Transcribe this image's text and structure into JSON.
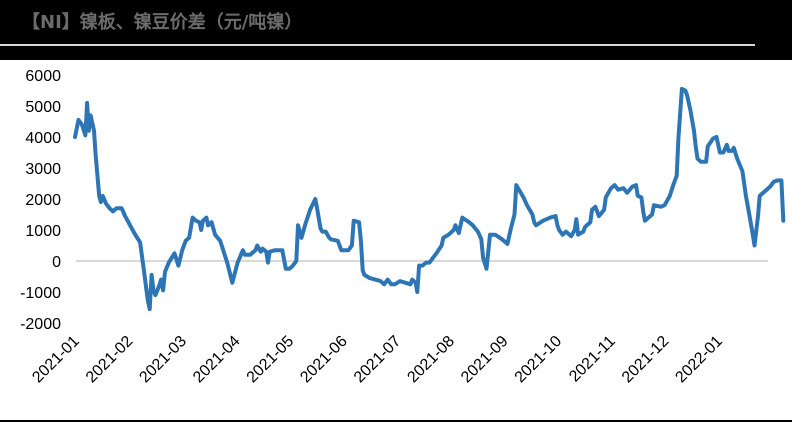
{
  "header": {
    "title": "【NI】镍板、镍豆价差（元/吨镍）"
  },
  "chart_data": {
    "type": "line",
    "title": "【NI】镍板、镍豆价差（元/吨镍）",
    "xlabel": "",
    "ylabel": "",
    "ylim": [
      -2000,
      6000
    ],
    "yticks": [
      6000,
      5000,
      4000,
      3000,
      2000,
      1000,
      0,
      -1000,
      -2000
    ],
    "ytick_labels": [
      "6000",
      "5000",
      "4000",
      "3000",
      "2000",
      "1000",
      "0",
      "-1000",
      "-2000"
    ],
    "xtick_labels": [
      "2021-01",
      "2021-02",
      "2021-03",
      "2021-04",
      "2021-05",
      "2021-06",
      "2021-07",
      "2021-08",
      "2021-09",
      "2021-10",
      "2021-11",
      "2021-12",
      "2022-01"
    ],
    "grid": "zero line only",
    "legend": "none",
    "colors": {
      "line": "#2E75B6",
      "zero_line": "#D9D9D9",
      "header_bg": "#000000",
      "title_text": "#6B6B6B"
    },
    "series": [
      {
        "name": "镍板、镍豆价差",
        "points": [
          [
            "2021-01-01",
            4000
          ],
          [
            "2021-01-03",
            4550
          ],
          [
            "2021-01-05",
            4400
          ],
          [
            "2021-01-07",
            4050
          ],
          [
            "2021-01-08",
            5100
          ],
          [
            "2021-01-09",
            4200
          ],
          [
            "2021-01-10",
            4700
          ],
          [
            "2021-01-12",
            4200
          ],
          [
            "2021-01-13",
            3400
          ],
          [
            "2021-01-15",
            2100
          ],
          [
            "2021-01-16",
            1900
          ],
          [
            "2021-01-17",
            2100
          ],
          [
            "2021-01-19",
            1850
          ],
          [
            "2021-01-21",
            1700
          ],
          [
            "2021-01-23",
            1600
          ],
          [
            "2021-01-25",
            1700
          ],
          [
            "2021-01-28",
            1700
          ],
          [
            "2021-01-30",
            1450
          ],
          [
            "2021-02-04",
            900
          ],
          [
            "2021-02-07",
            600
          ],
          [
            "2021-02-09",
            -300
          ],
          [
            "2021-02-11",
            -1250
          ],
          [
            "2021-02-12",
            -1550
          ],
          [
            "2021-02-13",
            -450
          ],
          [
            "2021-02-14",
            -950
          ],
          [
            "2021-02-15",
            -1100
          ],
          [
            "2021-02-17",
            -800
          ],
          [
            "2021-02-18",
            -600
          ],
          [
            "2021-02-19",
            -950
          ],
          [
            "2021-02-20",
            -350
          ],
          [
            "2021-02-22",
            -50
          ],
          [
            "2021-02-25",
            250
          ],
          [
            "2021-02-27",
            -150
          ],
          [
            "2021-03-01",
            350
          ],
          [
            "2021-03-03",
            650
          ],
          [
            "2021-03-05",
            750
          ],
          [
            "2021-03-07",
            1400
          ],
          [
            "2021-03-09",
            1300
          ],
          [
            "2021-03-11",
            1250
          ],
          [
            "2021-03-12",
            1000
          ],
          [
            "2021-03-13",
            1300
          ],
          [
            "2021-03-15",
            1400
          ],
          [
            "2021-03-16",
            1150
          ],
          [
            "2021-03-18",
            1250
          ],
          [
            "2021-03-19",
            1050
          ],
          [
            "2021-03-20",
            850
          ],
          [
            "2021-03-23",
            650
          ],
          [
            "2021-03-27",
            -50
          ],
          [
            "2021-03-30",
            -700
          ],
          [
            "2021-04-02",
            -50
          ],
          [
            "2021-04-05",
            350
          ],
          [
            "2021-04-06",
            200
          ],
          [
            "2021-04-09",
            200
          ],
          [
            "2021-04-12",
            350
          ],
          [
            "2021-04-13",
            500
          ],
          [
            "2021-04-15",
            300
          ],
          [
            "2021-04-16",
            400
          ],
          [
            "2021-04-18",
            300
          ],
          [
            "2021-04-19",
            -50
          ],
          [
            "2021-04-20",
            300
          ],
          [
            "2021-04-23",
            350
          ],
          [
            "2021-04-27",
            350
          ],
          [
            "2021-04-29",
            -250
          ],
          [
            "2021-05-01",
            -250
          ],
          [
            "2021-05-03",
            -150
          ],
          [
            "2021-05-05",
            0
          ],
          [
            "2021-05-06",
            1150
          ],
          [
            "2021-05-08",
            750
          ],
          [
            "2021-05-10",
            1150
          ],
          [
            "2021-05-13",
            1650
          ],
          [
            "2021-05-16",
            2000
          ],
          [
            "2021-05-17",
            1700
          ],
          [
            "2021-05-19",
            1050
          ],
          [
            "2021-05-20",
            950
          ],
          [
            "2021-05-22",
            950
          ],
          [
            "2021-05-24",
            750
          ],
          [
            "2021-05-25",
            700
          ],
          [
            "2021-05-29",
            650
          ],
          [
            "2021-05-31",
            350
          ],
          [
            "2021-06-04",
            350
          ],
          [
            "2021-06-06",
            500
          ],
          [
            "2021-06-07",
            1300
          ],
          [
            "2021-06-10",
            1250
          ],
          [
            "2021-06-11",
            650
          ],
          [
            "2021-06-12",
            -300
          ],
          [
            "2021-06-13",
            -450
          ],
          [
            "2021-06-16",
            -550
          ],
          [
            "2021-06-19",
            -600
          ],
          [
            "2021-06-22",
            -650
          ],
          [
            "2021-06-24",
            -750
          ],
          [
            "2021-06-26",
            -600
          ],
          [
            "2021-06-28",
            -750
          ],
          [
            "2021-06-30",
            -750
          ],
          [
            "2021-07-03",
            -650
          ],
          [
            "2021-07-06",
            -700
          ],
          [
            "2021-07-09",
            -750
          ],
          [
            "2021-07-10",
            -600
          ],
          [
            "2021-07-12",
            -700
          ],
          [
            "2021-07-13",
            -1000
          ],
          [
            "2021-07-14",
            -150
          ],
          [
            "2021-07-16",
            -150
          ],
          [
            "2021-07-18",
            -50
          ],
          [
            "2021-07-20",
            -50
          ],
          [
            "2021-07-22",
            100
          ],
          [
            "2021-07-24",
            250
          ],
          [
            "2021-07-27",
            500
          ],
          [
            "2021-07-28",
            750
          ],
          [
            "2021-07-31",
            850
          ],
          [
            "2021-08-03",
            1000
          ],
          [
            "2021-08-04",
            1150
          ],
          [
            "2021-08-06",
            900
          ],
          [
            "2021-08-08",
            1400
          ],
          [
            "2021-08-12",
            1250
          ],
          [
            "2021-08-14",
            1150
          ],
          [
            "2021-08-17",
            950
          ],
          [
            "2021-08-19",
            700
          ],
          [
            "2021-08-20",
            100
          ],
          [
            "2021-08-22",
            -250
          ],
          [
            "2021-08-24",
            850
          ],
          [
            "2021-08-27",
            850
          ],
          [
            "2021-08-31",
            700
          ],
          [
            "2021-09-03",
            550
          ],
          [
            "2021-09-05",
            1050
          ],
          [
            "2021-09-07",
            1500
          ],
          [
            "2021-09-08",
            2450
          ],
          [
            "2021-09-09",
            2350
          ],
          [
            "2021-09-12",
            2050
          ],
          [
            "2021-09-14",
            1800
          ],
          [
            "2021-09-17",
            1500
          ],
          [
            "2021-09-18",
            1250
          ],
          [
            "2021-09-19",
            1150
          ],
          [
            "2021-09-23",
            1300
          ],
          [
            "2021-09-27",
            1400
          ],
          [
            "2021-09-30",
            1450
          ],
          [
            "2021-10-01",
            1150
          ],
          [
            "2021-10-02",
            1000
          ],
          [
            "2021-10-04",
            850
          ],
          [
            "2021-10-06",
            950
          ],
          [
            "2021-10-09",
            800
          ],
          [
            "2021-10-11",
            1000
          ],
          [
            "2021-10-12",
            1350
          ],
          [
            "2021-10-13",
            850
          ],
          [
            "2021-10-16",
            950
          ],
          [
            "2021-10-17",
            1100
          ],
          [
            "2021-10-20",
            1250
          ],
          [
            "2021-10-21",
            1650
          ],
          [
            "2021-10-23",
            1750
          ],
          [
            "2021-10-25",
            1450
          ],
          [
            "2021-10-28",
            1650
          ],
          [
            "2021-10-29",
            2050
          ],
          [
            "2021-11-01",
            2350
          ],
          [
            "2021-11-03",
            2450
          ],
          [
            "2021-11-05",
            2300
          ],
          [
            "2021-11-08",
            2350
          ],
          [
            "2021-11-10",
            2200
          ],
          [
            "2021-11-13",
            2400
          ],
          [
            "2021-11-15",
            2450
          ],
          [
            "2021-11-16",
            2100
          ],
          [
            "2021-11-18",
            2050
          ],
          [
            "2021-11-19",
            1600
          ],
          [
            "2021-11-20",
            1300
          ],
          [
            "2021-11-22",
            1400
          ],
          [
            "2021-11-24",
            1500
          ],
          [
            "2021-11-25",
            1800
          ],
          [
            "2021-11-29",
            1750
          ],
          [
            "2021-12-01",
            1800
          ],
          [
            "2021-12-04",
            2100
          ],
          [
            "2021-12-06",
            2450
          ],
          [
            "2021-12-08",
            2750
          ],
          [
            "2021-12-09",
            3950
          ],
          [
            "2021-12-11",
            5550
          ],
          [
            "2021-12-13",
            5500
          ],
          [
            "2021-12-14",
            5350
          ],
          [
            "2021-12-16",
            4850
          ],
          [
            "2021-12-18",
            4200
          ],
          [
            "2021-12-19",
            3700
          ],
          [
            "2021-12-20",
            3300
          ],
          [
            "2021-12-22",
            3200
          ],
          [
            "2021-12-25",
            3200
          ],
          [
            "2021-12-26",
            3700
          ],
          [
            "2021-12-29",
            3950
          ],
          [
            "2021-12-31",
            4000
          ],
          [
            "2022-01-02",
            3500
          ],
          [
            "2022-01-04",
            3500
          ],
          [
            "2022-01-06",
            3750
          ],
          [
            "2022-01-07",
            3550
          ],
          [
            "2022-01-09",
            3550
          ],
          [
            "2022-01-10",
            3650
          ],
          [
            "2022-01-12",
            3300
          ],
          [
            "2022-01-15",
            2900
          ],
          [
            "2022-01-17",
            2100
          ],
          [
            "2022-01-19",
            1500
          ],
          [
            "2022-01-21",
            850
          ],
          [
            "2022-01-22",
            500
          ],
          [
            "2022-01-24",
            1450
          ],
          [
            "2022-01-25",
            2100
          ],
          [
            "2022-01-28",
            2250
          ],
          [
            "2022-01-31",
            2400
          ],
          [
            "2022-02-02",
            2550
          ],
          [
            "2022-02-04",
            2600
          ],
          [
            "2022-02-06",
            2600
          ],
          [
            "2022-02-07",
            1300
          ]
        ]
      }
    ]
  }
}
